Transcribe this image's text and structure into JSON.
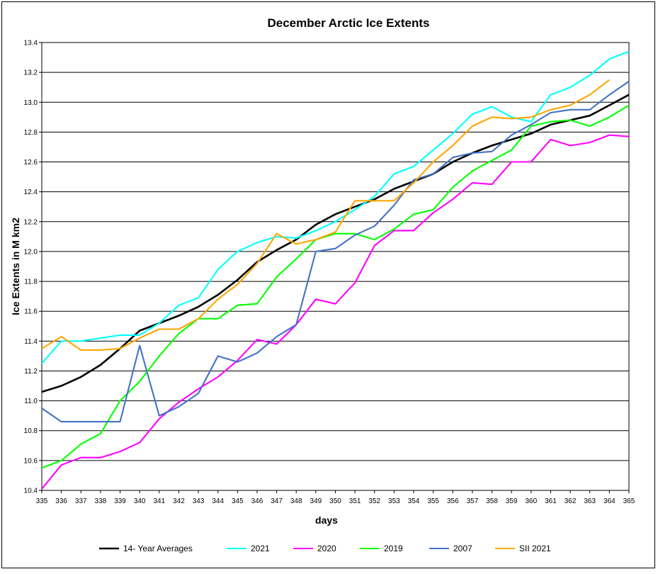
{
  "chart_data": {
    "type": "line",
    "title": "December  Arctic Ice Extents",
    "xlabel": "days",
    "ylabel": "Ice Extents in M km2",
    "xlim": [
      335,
      365
    ],
    "ylim": [
      10.4,
      13.4
    ],
    "y_ticks": [
      "10.4",
      "10.6",
      "10.8",
      "11.0",
      "11.2",
      "11.4",
      "11.6",
      "11.8",
      "12.0",
      "12.2",
      "12.4",
      "12.6",
      "12.8",
      "13.0",
      "13.2",
      "13.4"
    ],
    "x_ticks": [
      "335",
      "336",
      "337",
      "338",
      "339",
      "340",
      "341",
      "342",
      "343",
      "344",
      "345",
      "346",
      "347",
      "348",
      "349",
      "350",
      "351",
      "352",
      "353",
      "354",
      "355",
      "356",
      "357",
      "358",
      "359",
      "360",
      "361",
      "362",
      "363",
      "364",
      "365"
    ],
    "grid": "horizontal",
    "legend_position": "bottom",
    "x": [
      335,
      336,
      337,
      338,
      339,
      340,
      341,
      342,
      343,
      344,
      345,
      346,
      347,
      348,
      349,
      350,
      351,
      352,
      353,
      354,
      355,
      356,
      357,
      358,
      359,
      360,
      361,
      362,
      363,
      364,
      365
    ],
    "series": [
      {
        "name": "14- Year Averages",
        "color": "#000000",
        "values": [
          11.06,
          11.1,
          11.16,
          11.24,
          11.35,
          11.47,
          11.52,
          11.57,
          11.63,
          11.71,
          11.81,
          11.93,
          12.01,
          12.08,
          12.18,
          12.25,
          12.3,
          12.35,
          12.42,
          12.47,
          12.52,
          12.6,
          12.66,
          12.71,
          12.75,
          12.79,
          12.85,
          12.88,
          12.91,
          12.98,
          13.05
        ]
      },
      {
        "name": "2021",
        "color": "#00ffff",
        "values": [
          11.25,
          11.4,
          11.4,
          11.42,
          11.44,
          11.44,
          11.52,
          11.64,
          11.69,
          11.88,
          12.0,
          12.06,
          12.1,
          12.09,
          12.14,
          12.2,
          12.28,
          12.37,
          12.52,
          12.57,
          12.68,
          12.79,
          12.92,
          12.97,
          12.9,
          12.87,
          13.05,
          13.1,
          13.18,
          13.29,
          13.34
        ]
      },
      {
        "name": "2020",
        "color": "#ff00ff",
        "values": [
          10.41,
          10.57,
          10.62,
          10.62,
          10.66,
          10.72,
          10.88,
          10.99,
          11.08,
          11.16,
          11.27,
          11.41,
          11.38,
          11.51,
          11.68,
          11.65,
          11.79,
          12.04,
          12.14,
          12.14,
          12.26,
          12.35,
          12.46,
          12.45,
          12.6,
          12.6,
          12.75,
          12.71,
          12.73,
          12.78,
          12.77
        ]
      },
      {
        "name": "2019",
        "color": "#00ff00",
        "values": [
          10.55,
          10.6,
          10.71,
          10.78,
          11.0,
          11.13,
          11.3,
          11.45,
          11.55,
          11.55,
          11.64,
          11.65,
          11.83,
          11.95,
          12.08,
          12.12,
          12.12,
          12.08,
          12.15,
          12.25,
          12.28,
          12.43,
          12.54,
          12.61,
          12.68,
          12.84,
          12.87,
          12.88,
          12.84,
          12.9,
          12.98
        ]
      },
      {
        "name": "2007",
        "color": "#4472c4",
        "values": [
          10.95,
          10.86,
          10.86,
          10.86,
          10.86,
          11.37,
          10.9,
          10.96,
          11.05,
          11.3,
          11.26,
          11.32,
          11.43,
          11.51,
          12.0,
          12.02,
          12.11,
          12.17,
          12.31,
          12.48,
          12.52,
          12.63,
          12.66,
          12.67,
          12.78,
          12.85,
          12.93,
          12.95,
          12.95,
          13.05,
          13.14
        ]
      },
      {
        "name": "SII 2021",
        "color": "#ffa500",
        "values": [
          11.35,
          11.43,
          11.34,
          11.34,
          11.35,
          11.42,
          11.48,
          11.48,
          11.55,
          11.68,
          11.78,
          11.92,
          12.12,
          12.05,
          12.08,
          12.13,
          12.34,
          12.34,
          12.34,
          12.46,
          12.6,
          12.71,
          12.84,
          12.9,
          12.89,
          12.9,
          12.95,
          12.98,
          13.05,
          13.15,
          null
        ]
      }
    ]
  }
}
